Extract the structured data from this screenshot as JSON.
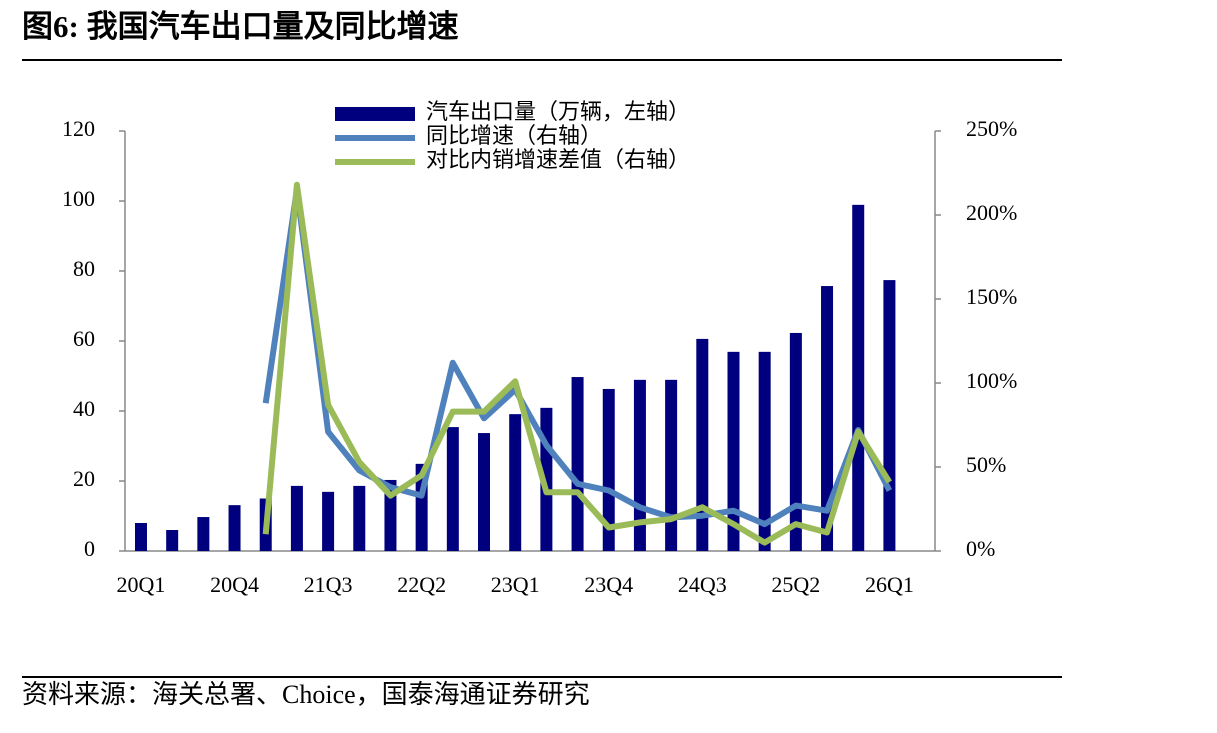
{
  "chart_data": {
    "type": "bar",
    "title": "图6:  我国汽车出口量及同比增速",
    "source": "资料来源：海关总署、Choice，国泰海通证券研究",
    "categories": [
      "20Q1",
      null,
      null,
      "20Q4",
      null,
      null,
      "21Q3",
      null,
      null,
      "22Q2",
      null,
      null,
      "23Q1",
      null,
      null,
      "23Q4",
      null,
      null,
      "24Q3",
      null,
      null,
      "25Q2",
      null,
      null,
      "26Q1"
    ],
    "series": [
      {
        "name": "汽车出口量（万辆，左轴）",
        "type": "bar",
        "color": "#00007f",
        "values": [
          8,
          6,
          9.7,
          13.1,
          15,
          18.6,
          16.9,
          18.6,
          20.3,
          24.9,
          35.4,
          33.7,
          39.1,
          40.9,
          49.7,
          46.3,
          48.9,
          48.9,
          60.6,
          56.9,
          56.9,
          62.3,
          75.7,
          98.9,
          77.4
        ]
      },
      {
        "name": "同比增速（右轴）",
        "type": "line",
        "axis": "y2",
        "color": "#4f81bd",
        "values": [
          null,
          null,
          null,
          null,
          88,
          215,
          71,
          48,
          38,
          33,
          112,
          79,
          96,
          63,
          40,
          36,
          26,
          20,
          21,
          24,
          16,
          27,
          24,
          72,
          36
        ]
      },
      {
        "name": "对比内销增速差值（右轴）",
        "type": "line",
        "axis": "y2",
        "color": "#9bbb59",
        "values": [
          null,
          null,
          null,
          null,
          10,
          218,
          87,
          53,
          33,
          45,
          83,
          83,
          101,
          35,
          35,
          14,
          17,
          19,
          26,
          16,
          5,
          16,
          11,
          71,
          41
        ]
      }
    ],
    "ylim": [
      0,
      120
    ],
    "yticks": [
      0,
      20,
      40,
      60,
      80,
      100,
      120
    ],
    "y2lim": [
      0,
      250
    ],
    "y2ticks": [
      {
        "value": 0,
        "label": "0%"
      },
      {
        "value": 50,
        "label": "50%"
      },
      {
        "value": 100,
        "label": "100%"
      },
      {
        "value": 150,
        "label": "150%"
      },
      {
        "value": 200,
        "label": "200%"
      },
      {
        "value": 250,
        "label": "250%"
      }
    ]
  }
}
